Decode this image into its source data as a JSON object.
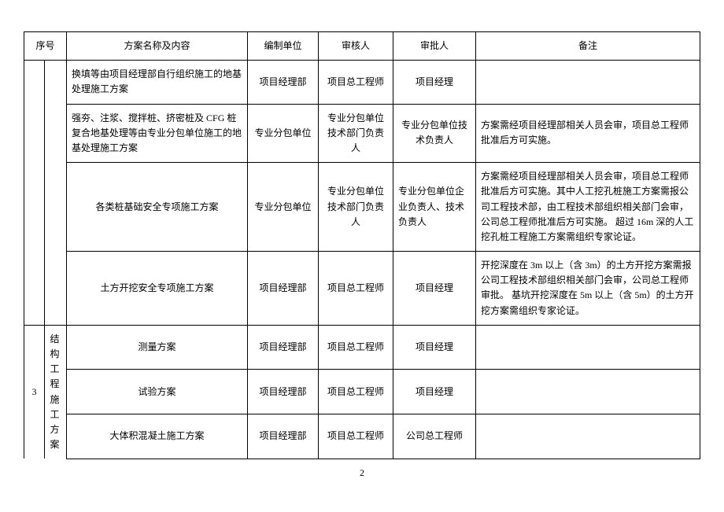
{
  "headers": {
    "seq": "序号",
    "name": "方案名称及内容",
    "unit": "编制单位",
    "reviewer": "审核人",
    "approver": "审批人",
    "remark": "备注"
  },
  "group3_seq": "3",
  "group3_cat": "结构工程施工方案",
  "rows": [
    {
      "name": "换填等由项目经理部自行组织施工的地基处理施工方案",
      "unit": "项目经理部",
      "reviewer": "项目总工程师",
      "approver": "项目经理",
      "remark": ""
    },
    {
      "name": "强夯、注浆、搅拌桩、挤密桩及 CFG 桩复合地基处理等由专业分包单位施工的地基处理施工方案",
      "unit": "专业分包单位",
      "reviewer": "专业分包单位技术部门负责人",
      "approver": "专业分包单位技术负责人",
      "remark": "方案需经项目经理部相关人员会审，项目总工程师批准后方可实施。"
    },
    {
      "name": "各类桩基础安全专项施工方案",
      "unit": "专业分包单位",
      "reviewer": "专业分包单位技术部门负责人",
      "approver": "专业分包单位企业负责人、技术负责人",
      "remark": "方案需经项目经理部相关人员会审，项目总工程师批准后方可实施。其中人工挖孔桩施工方案需报公司工程技术部，由工程技术部组织相关部门会审，公司总工程师批准后方可实施。\n超过 16m 深的人工挖孔桩工程施工方案需组织专家论证。"
    },
    {
      "name": "土方开挖安全专项施工方案",
      "unit": "项目经理部",
      "reviewer": "项目总工程师",
      "approver": "项目经理",
      "remark": "开挖深度在 3m 以上（含 3m）的土方开挖方案需报公司工程技术部组织相关部门会审，公司总工程师审批。\n基坑开挖深度在 5m 以上（含 5m）的土方开挖方案需组织专家论证。"
    },
    {
      "name": "测量方案",
      "unit": "项目经理部",
      "reviewer": "项目总工程师",
      "approver": "项目经理",
      "remark": ""
    },
    {
      "name": "试验方案",
      "unit": "项目经理部",
      "reviewer": "项目总工程师",
      "approver": "项目经理",
      "remark": ""
    },
    {
      "name": "大体积混凝土施工方案",
      "unit": "项目经理部",
      "reviewer": "项目总工程师",
      "approver": "公司总工程师",
      "remark": ""
    }
  ],
  "page_number": "2"
}
